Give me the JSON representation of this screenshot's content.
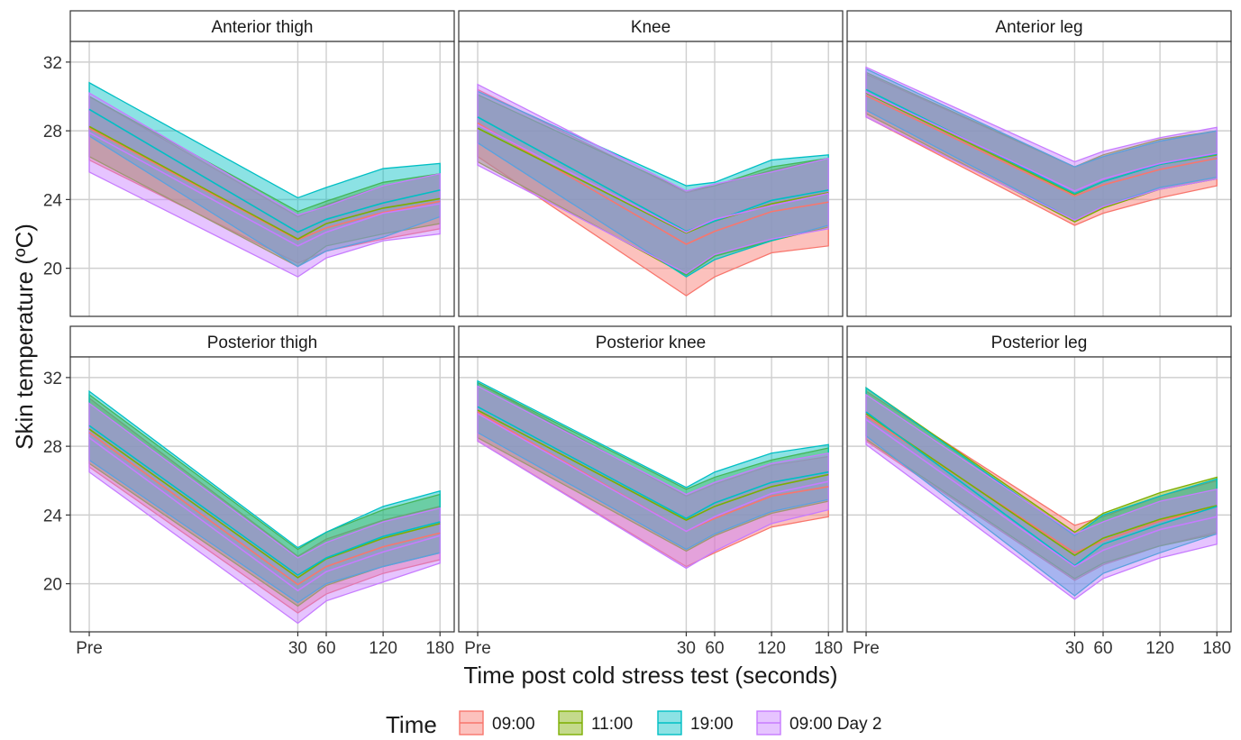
{
  "chart_data": {
    "type": "area",
    "description_kind": "faceted ribbon chart (mean +/- SD bands) with center mean lines",
    "xlabel": "Time post cold stress test (seconds)",
    "ylabel": "Skin temperature (ºC)",
    "x_values": [
      0,
      30,
      60,
      120,
      180
    ],
    "x_tick_labels": [
      "Pre",
      "30",
      "60",
      "120",
      "180"
    ],
    "x_tick_positions": [
      -190,
      30,
      60,
      120,
      180
    ],
    "xlim": [
      -210,
      195
    ],
    "ylim": [
      17.2,
      33.2
    ],
    "y_ticks": [
      20,
      24,
      28,
      32
    ],
    "grid": true,
    "legend": {
      "title": "Time",
      "placement": "bottom",
      "entries": [
        {
          "name": "09:00",
          "color": "#F8766D"
        },
        {
          "name": "11:00",
          "color": "#7CAE00"
        },
        {
          "name": "19:00",
          "color": "#00BFC4"
        },
        {
          "name": "09:00 Day 2",
          "color": "#C77CFF"
        }
      ]
    },
    "panels": [
      {
        "title": "Anterior thigh",
        "series": [
          {
            "name": "09:00",
            "lower": [
              26.3,
              20.3,
              21.0,
              21.7,
              22.3
            ],
            "upper": [
              30.0,
              23.0,
              23.7,
              24.8,
              25.5
            ]
          },
          {
            "name": "11:00",
            "lower": [
              26.5,
              20.1,
              21.3,
              22.0,
              22.6
            ],
            "upper": [
              30.0,
              23.3,
              23.9,
              25.0,
              25.5
            ]
          },
          {
            "name": "19:00",
            "lower": [
              27.7,
              20.1,
              21.0,
              21.8,
              23.0
            ],
            "upper": [
              30.8,
              24.1,
              24.7,
              25.8,
              26.1
            ]
          },
          {
            "name": "09:00 Day 2",
            "lower": [
              25.6,
              19.5,
              20.6,
              21.6,
              22.0
            ],
            "upper": [
              30.2,
              23.1,
              23.6,
              24.8,
              25.5
            ]
          }
        ]
      },
      {
        "title": "Knee",
        "series": [
          {
            "name": "09:00",
            "lower": [
              26.5,
              18.4,
              19.5,
              20.9,
              21.3
            ],
            "upper": [
              30.4,
              24.4,
              24.8,
              25.7,
              26.4
            ]
          },
          {
            "name": "11:00",
            "lower": [
              26.2,
              19.6,
              20.7,
              21.6,
              22.4
            ],
            "upper": [
              30.1,
              24.5,
              24.8,
              25.9,
              26.4
            ]
          },
          {
            "name": "19:00",
            "lower": [
              27.3,
              19.5,
              20.5,
              21.6,
              22.5
            ],
            "upper": [
              30.3,
              24.8,
              25.0,
              26.3,
              26.6
            ]
          },
          {
            "name": "09:00 Day 2",
            "lower": [
              26.0,
              19.7,
              20.8,
              21.7,
              22.3
            ],
            "upper": [
              30.7,
              24.5,
              24.9,
              25.6,
              26.4
            ]
          }
        ]
      },
      {
        "title": "Anterior leg",
        "series": [
          {
            "name": "09:00",
            "lower": [
              28.8,
              22.5,
              23.2,
              24.1,
              24.8
            ],
            "upper": [
              31.3,
              25.9,
              26.5,
              27.4,
              28.0
            ]
          },
          {
            "name": "11:00",
            "lower": [
              29.0,
              22.7,
              23.5,
              24.6,
              25.2
            ],
            "upper": [
              31.4,
              25.9,
              26.6,
              27.5,
              28.0
            ]
          },
          {
            "name": "19:00",
            "lower": [
              29.2,
              22.8,
              23.6,
              24.7,
              25.3
            ],
            "upper": [
              31.6,
              25.9,
              26.5,
              27.4,
              28.0
            ]
          },
          {
            "name": "09:00 Day 2",
            "lower": [
              28.8,
              22.8,
              23.6,
              24.6,
              25.2
            ],
            "upper": [
              31.7,
              26.2,
              26.8,
              27.6,
              28.2
            ]
          }
        ]
      },
      {
        "title": "Posterior thigh",
        "series": [
          {
            "name": "09:00",
            "lower": [
              26.8,
              18.3,
              19.4,
              20.6,
              21.4
            ],
            "upper": [
              30.8,
              21.6,
              22.6,
              23.7,
              24.5
            ]
          },
          {
            "name": "11:00",
            "lower": [
              27.0,
              18.7,
              19.9,
              21.0,
              21.8
            ],
            "upper": [
              31.0,
              22.0,
              23.0,
              24.3,
              25.2
            ]
          },
          {
            "name": "19:00",
            "lower": [
              27.2,
              18.9,
              20.0,
              21.0,
              21.8
            ],
            "upper": [
              31.2,
              22.1,
              23.0,
              24.5,
              25.4
            ]
          },
          {
            "name": "09:00 Day 2",
            "lower": [
              26.5,
              17.7,
              19.0,
              20.1,
              21.2
            ],
            "upper": [
              30.5,
              21.5,
              22.4,
              23.6,
              24.4
            ]
          }
        ]
      },
      {
        "title": "Posterior knee",
        "series": [
          {
            "name": "09:00",
            "lower": [
              28.3,
              21.0,
              21.8,
              23.3,
              23.9
            ],
            "upper": [
              31.7,
              25.1,
              25.8,
              26.9,
              27.4
            ]
          },
          {
            "name": "11:00",
            "lower": [
              28.5,
              21.9,
              22.8,
              24.1,
              24.8
            ],
            "upper": [
              31.7,
              25.5,
              26.2,
              27.2,
              27.9
            ]
          },
          {
            "name": "19:00",
            "lower": [
              28.8,
              22.0,
              22.9,
              24.2,
              24.9
            ],
            "upper": [
              31.8,
              25.6,
              26.5,
              27.6,
              28.1
            ]
          },
          {
            "name": "09:00 Day 2",
            "lower": [
              28.3,
              20.9,
              21.9,
              23.5,
              24.3
            ],
            "upper": [
              31.5,
              25.2,
              25.9,
              27.0,
              27.6
            ]
          }
        ]
      },
      {
        "title": "Posterior leg",
        "series": [
          {
            "name": "09:00",
            "lower": [
              28.3,
              20.2,
              21.1,
              22.2,
              23.0
            ],
            "upper": [
              31.2,
              23.4,
              23.9,
              25.1,
              26.0
            ]
          },
          {
            "name": "11:00",
            "lower": [
              28.4,
              20.3,
              21.2,
              22.2,
              22.9
            ],
            "upper": [
              31.4,
              23.0,
              24.1,
              25.3,
              26.2
            ]
          },
          {
            "name": "19:00",
            "lower": [
              28.6,
              19.3,
              20.6,
              21.8,
              22.9
            ],
            "upper": [
              31.4,
              22.8,
              24.0,
              25.1,
              26.1
            ]
          },
          {
            "name": "09:00 Day 2",
            "lower": [
              28.1,
              19.1,
              20.3,
              21.5,
              22.3
            ],
            "upper": [
              31.0,
              22.9,
              23.6,
              24.8,
              25.5
            ]
          }
        ]
      }
    ]
  }
}
